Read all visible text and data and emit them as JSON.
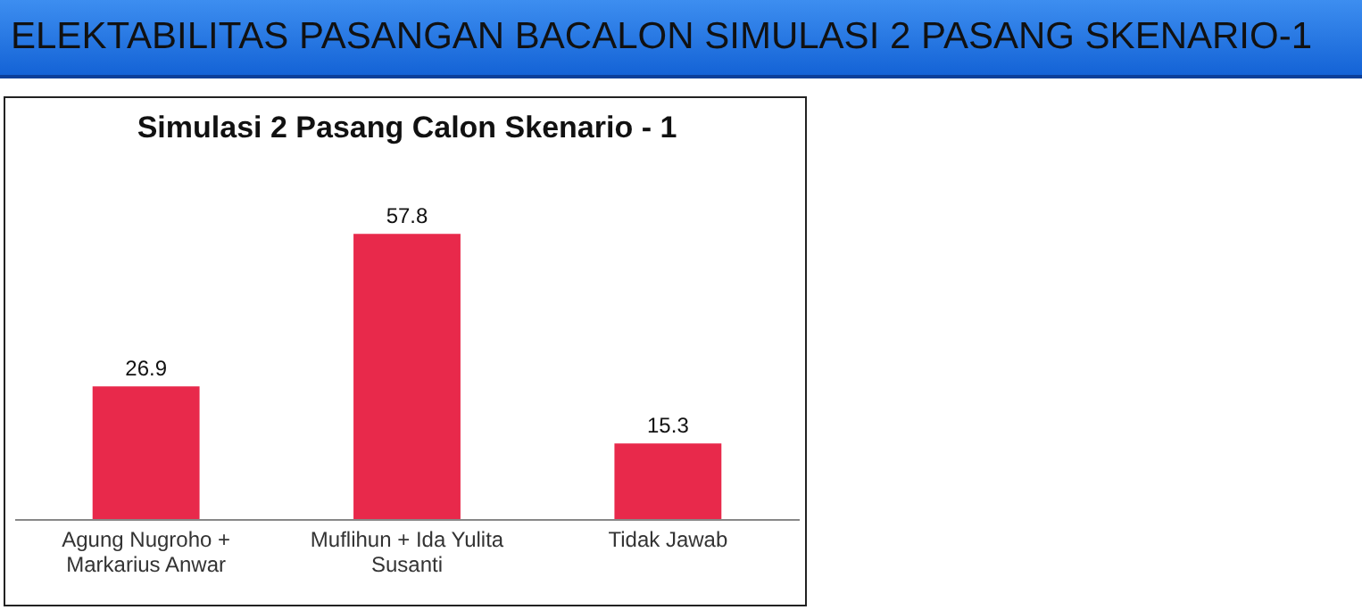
{
  "chart_data": {
    "type": "bar",
    "title": "ELEKTABILITAS PASANGAN BACALON SIMULASI 2 PASANG SKENARIO-1",
    "subtitle": "Simulasi 2 Pasang Calon Skenario - 1",
    "categories": [
      "Agung Nugroho + Markarius Anwar",
      "Muflihun + Ida Yulita Susanti",
      "Tidak Jawab"
    ],
    "values": [
      26.9,
      57.8,
      15.3
    ],
    "color": "#e8294b",
    "data_labels": true,
    "grid": false
  }
}
